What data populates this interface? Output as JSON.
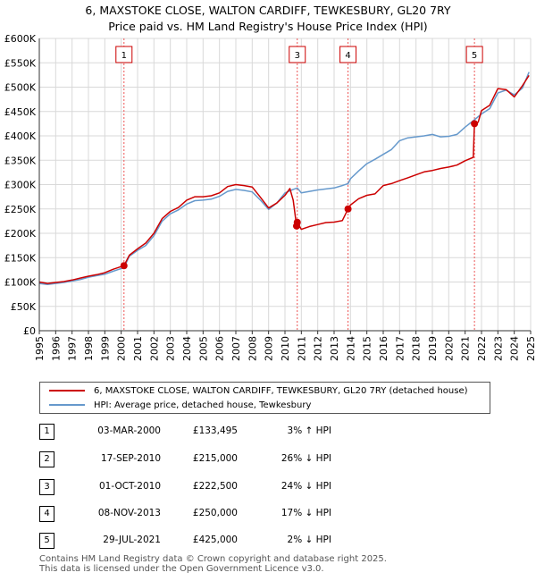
{
  "chart_data": {
    "type": "line",
    "title": "6, MAXSTOKE CLOSE, WALTON CARDIFF, TEWKESBURY, GL20 7RY",
    "subtitle": "Price paid vs. HM Land Registry's House Price Index (HPI)",
    "xlim": [
      1995,
      2025
    ],
    "ylim": [
      0,
      600000
    ],
    "x_ticks": [
      "1995",
      "1996",
      "1997",
      "1998",
      "1999",
      "2000",
      "2001",
      "2002",
      "2003",
      "2004",
      "2005",
      "2006",
      "2007",
      "2008",
      "2009",
      "2010",
      "2011",
      "2012",
      "2013",
      "2014",
      "2015",
      "2016",
      "2017",
      "2018",
      "2019",
      "2020",
      "2021",
      "2022",
      "2023",
      "2024",
      "2025"
    ],
    "y_ticks": [
      {
        "value": 0,
        "label": "£0"
      },
      {
        "value": 50000,
        "label": "£50K"
      },
      {
        "value": 100000,
        "label": "£100K"
      },
      {
        "value": 150000,
        "label": "£150K"
      },
      {
        "value": 200000,
        "label": "£200K"
      },
      {
        "value": 250000,
        "label": "£250K"
      },
      {
        "value": 300000,
        "label": "£300K"
      },
      {
        "value": 350000,
        "label": "£350K"
      },
      {
        "value": 400000,
        "label": "£400K"
      },
      {
        "value": 450000,
        "label": "£450K"
      },
      {
        "value": 500000,
        "label": "£500K"
      },
      {
        "value": 550000,
        "label": "£550K"
      },
      {
        "value": 600000,
        "label": "£600K"
      }
    ],
    "grid": true,
    "series": [
      {
        "name": "6, MAXSTOKE CLOSE, WALTON CARDIFF, TEWKESBURY, GL20 7RY (detached house)",
        "color": "#cc0000",
        "x": [
          1995.0,
          1995.5,
          1996.0,
          1996.5,
          1997.0,
          1997.5,
          1998.0,
          1998.5,
          1999.0,
          1999.5,
          2000.17,
          2000.5,
          2001.0,
          2001.5,
          2002.0,
          2002.5,
          2003.0,
          2003.5,
          2004.0,
          2004.5,
          2005.0,
          2005.5,
          2006.0,
          2006.5,
          2007.0,
          2007.5,
          2008.0,
          2008.5,
          2009.0,
          2009.5,
          2010.0,
          2010.3,
          2010.5,
          2010.71,
          2010.75,
          2011.0,
          2011.5,
          2012.0,
          2012.5,
          2013.0,
          2013.5,
          2013.85,
          2014.0,
          2014.5,
          2015.0,
          2015.5,
          2016.0,
          2016.5,
          2017.0,
          2017.5,
          2018.0,
          2018.5,
          2019.0,
          2019.5,
          2020.0,
          2020.5,
          2021.0,
          2021.5,
          2021.57,
          2021.8,
          2022.0,
          2022.5,
          2023.0,
          2023.5,
          2024.0,
          2024.5,
          2024.9
        ],
        "y": [
          100000,
          97000,
          99000,
          101000,
          104000,
          108000,
          112000,
          115000,
          119000,
          126000,
          133495,
          155000,
          168000,
          180000,
          200000,
          230000,
          245000,
          253000,
          268000,
          275000,
          275000,
          277000,
          283000,
          296000,
          300000,
          298000,
          295000,
          274000,
          252000,
          262000,
          278000,
          292000,
          268000,
          215000,
          222500,
          208000,
          214000,
          218000,
          222000,
          223000,
          226000,
          250000,
          258000,
          271000,
          278000,
          281000,
          298000,
          302000,
          308000,
          314000,
          320000,
          326000,
          329000,
          333000,
          336000,
          340000,
          349000,
          356000,
          425000,
          428000,
          452000,
          463000,
          497000,
          495000,
          480000,
          503000,
          524000
        ]
      },
      {
        "name": "HPI: Average price, detached house, Tewkesbury",
        "color": "#6699cc",
        "x": [
          1995.0,
          1995.5,
          1996.0,
          1996.5,
          1997.0,
          1997.5,
          1998.0,
          1998.5,
          1999.0,
          1999.5,
          2000.17,
          2000.5,
          2001.0,
          2001.5,
          2002.0,
          2002.5,
          2003.0,
          2003.5,
          2004.0,
          2004.5,
          2005.0,
          2005.5,
          2006.0,
          2006.5,
          2007.0,
          2007.5,
          2008.0,
          2008.5,
          2009.0,
          2009.5,
          2010.0,
          2010.5,
          2010.75,
          2011.0,
          2011.5,
          2012.0,
          2012.5,
          2013.0,
          2013.5,
          2013.85,
          2014.0,
          2014.5,
          2015.0,
          2015.5,
          2016.0,
          2016.5,
          2017.0,
          2017.5,
          2018.0,
          2018.5,
          2019.0,
          2019.5,
          2020.0,
          2020.5,
          2021.0,
          2021.57,
          2022.0,
          2022.5,
          2023.0,
          2023.5,
          2024.0,
          2024.5,
          2024.9
        ],
        "y": [
          97000,
          95000,
          97000,
          99000,
          102000,
          105000,
          110000,
          113000,
          116000,
          122000,
          129500,
          153000,
          165000,
          175000,
          195000,
          225000,
          240000,
          248000,
          260000,
          267000,
          268000,
          270000,
          276000,
          286000,
          290000,
          288000,
          285000,
          268000,
          249000,
          262000,
          283000,
          290000,
          293000,
          283000,
          286000,
          289000,
          291000,
          293000,
          298000,
          302000,
          312000,
          328000,
          343000,
          352000,
          362000,
          372000,
          390000,
          396000,
          398000,
          400000,
          403000,
          398000,
          399000,
          403000,
          418000,
          433000,
          445000,
          456000,
          488000,
          494000,
          484000,
          498000,
          531000
        ]
      }
    ],
    "sales": [
      {
        "num": "1",
        "x": 2000.17,
        "y": 133495,
        "date": "03-MAR-2000",
        "price": "£133,495",
        "hpi": "3% ↑ HPI"
      },
      {
        "num": "2",
        "x": 2010.71,
        "y": 215000,
        "date": "17-SEP-2010",
        "price": "£215,000",
        "hpi": "26% ↓ HPI"
      },
      {
        "num": "3",
        "x": 2010.75,
        "y": 222500,
        "date": "01-OCT-2010",
        "price": "£222,500",
        "hpi": "24% ↓ HPI"
      },
      {
        "num": "4",
        "x": 2013.85,
        "y": 250000,
        "date": "08-NOV-2013",
        "price": "£250,000",
        "hpi": "17% ↓ HPI"
      },
      {
        "num": "5",
        "x": 2021.57,
        "y": 425000,
        "date": "29-JUL-2021",
        "price": "£425,000",
        "hpi": "2% ↓ HPI"
      }
    ],
    "marker_labels": [
      {
        "num": "1",
        "x": 2000.17
      },
      {
        "num": "3",
        "x": 2010.75
      },
      {
        "num": "4",
        "x": 2013.85
      },
      {
        "num": "5",
        "x": 2021.57
      }
    ],
    "legend_placement": "below"
  },
  "footer": {
    "line1": "Contains HM Land Registry data © Crown copyright and database right 2025.",
    "line2": "This data is licensed under the Open Government Licence v3.0."
  }
}
